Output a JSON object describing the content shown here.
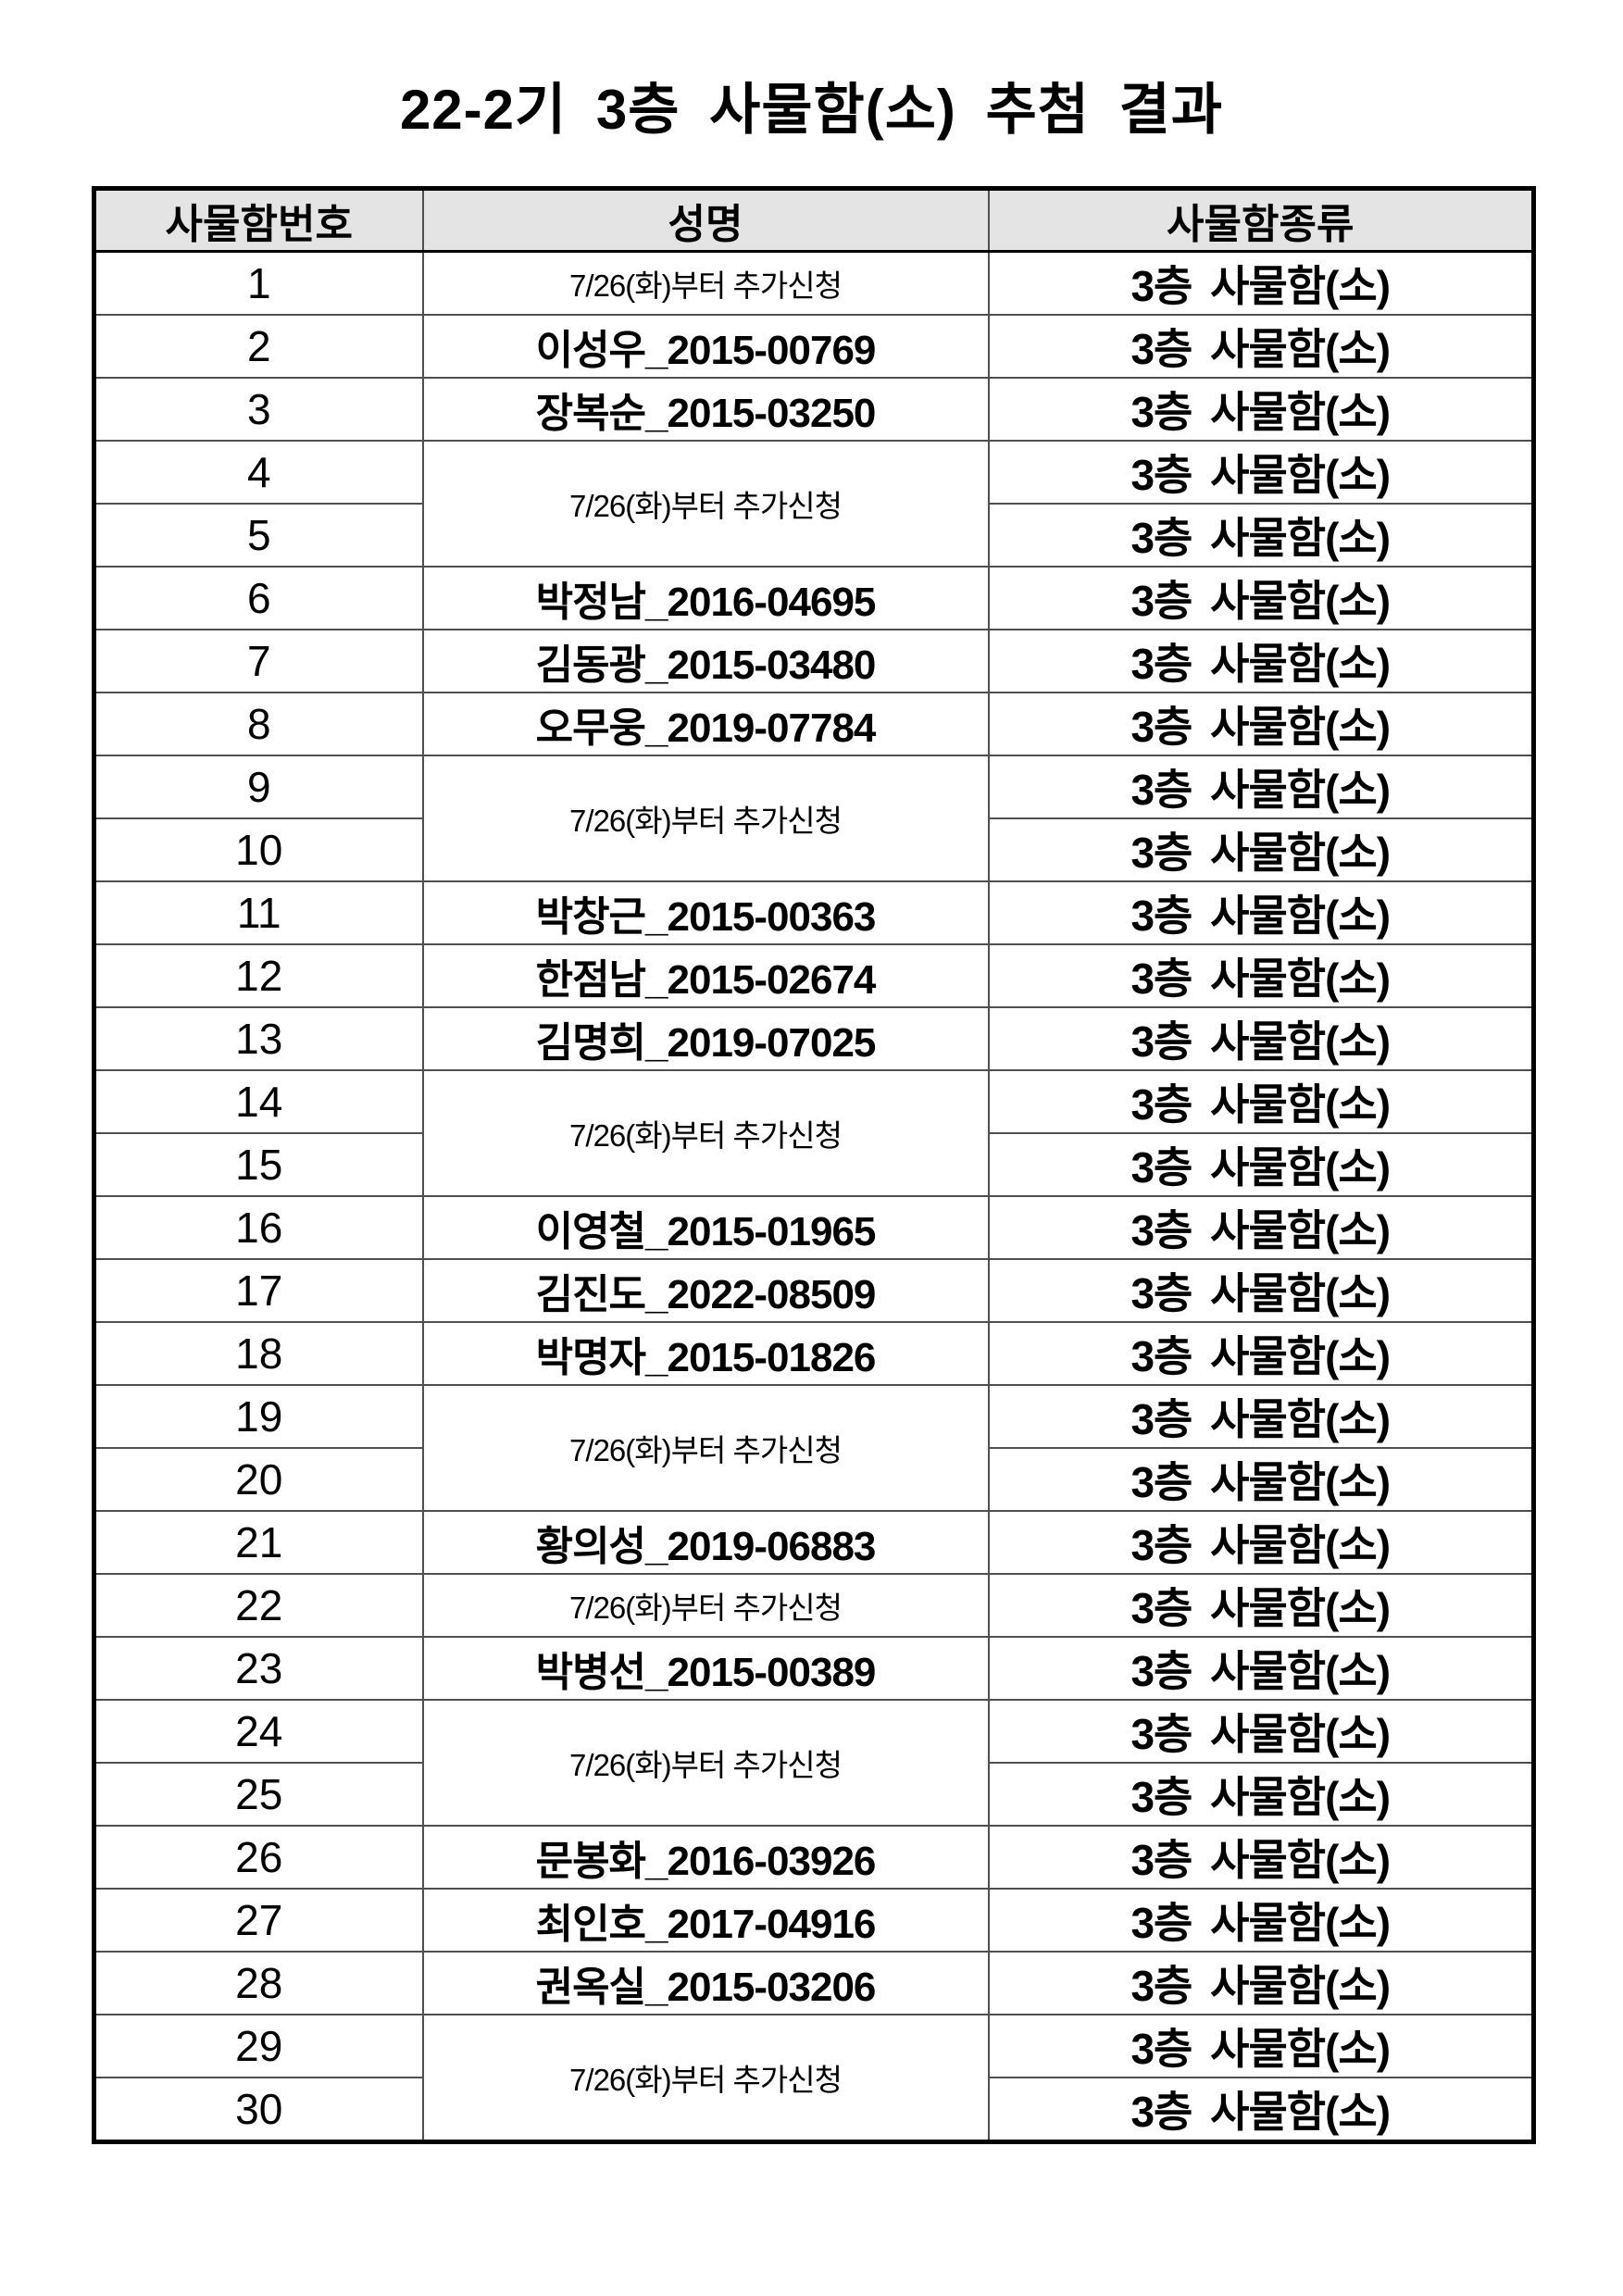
{
  "page": {
    "title": "22-2기 3층 사물함(소) 추첨 결과"
  },
  "table": {
    "headers": [
      "사물함번호",
      "성명",
      "사물함종류"
    ],
    "notice_text": "7/26(화)부터 추가신청",
    "locker_type": "3층 사물함(소)",
    "rows": [
      {
        "no": "1",
        "kind": "notice"
      },
      {
        "no": "2",
        "kind": "name",
        "name": "이성우_2015-00769"
      },
      {
        "no": "3",
        "kind": "name",
        "name": "장복순_2015-03250"
      },
      {
        "no": "4",
        "kind": "notice2"
      },
      {
        "no": "5",
        "kind": "cont"
      },
      {
        "no": "6",
        "kind": "name",
        "name": "박정남_2016-04695"
      },
      {
        "no": "7",
        "kind": "name",
        "name": "김동광_2015-03480"
      },
      {
        "no": "8",
        "kind": "name",
        "name": "오무웅_2019-07784"
      },
      {
        "no": "9",
        "kind": "notice2"
      },
      {
        "no": "10",
        "kind": "cont"
      },
      {
        "no": "11",
        "kind": "name",
        "name": "박창근_2015-00363"
      },
      {
        "no": "12",
        "kind": "name",
        "name": "한점남_2015-02674"
      },
      {
        "no": "13",
        "kind": "name",
        "name": "김명희_2019-07025"
      },
      {
        "no": "14",
        "kind": "notice2"
      },
      {
        "no": "15",
        "kind": "cont"
      },
      {
        "no": "16",
        "kind": "name",
        "name": "이영철_2015-01965"
      },
      {
        "no": "17",
        "kind": "name",
        "name": "김진도_2022-08509"
      },
      {
        "no": "18",
        "kind": "name",
        "name": "박명자_2015-01826"
      },
      {
        "no": "19",
        "kind": "notice2"
      },
      {
        "no": "20",
        "kind": "cont"
      },
      {
        "no": "21",
        "kind": "name",
        "name": "황의성_2019-06883"
      },
      {
        "no": "22",
        "kind": "notice"
      },
      {
        "no": "23",
        "kind": "name",
        "name": "박병선_2015-00389"
      },
      {
        "no": "24",
        "kind": "notice2"
      },
      {
        "no": "25",
        "kind": "cont"
      },
      {
        "no": "26",
        "kind": "name",
        "name": "문봉화_2016-03926"
      },
      {
        "no": "27",
        "kind": "name",
        "name": "최인호_2017-04916"
      },
      {
        "no": "28",
        "kind": "name",
        "name": "권옥실_2015-03206"
      },
      {
        "no": "29",
        "kind": "notice2"
      },
      {
        "no": "30",
        "kind": "cont"
      }
    ]
  },
  "colors": {
    "header_bg": "#e4e4e4",
    "outer_border": "#000000",
    "inner_border": "#4f4f4f"
  }
}
